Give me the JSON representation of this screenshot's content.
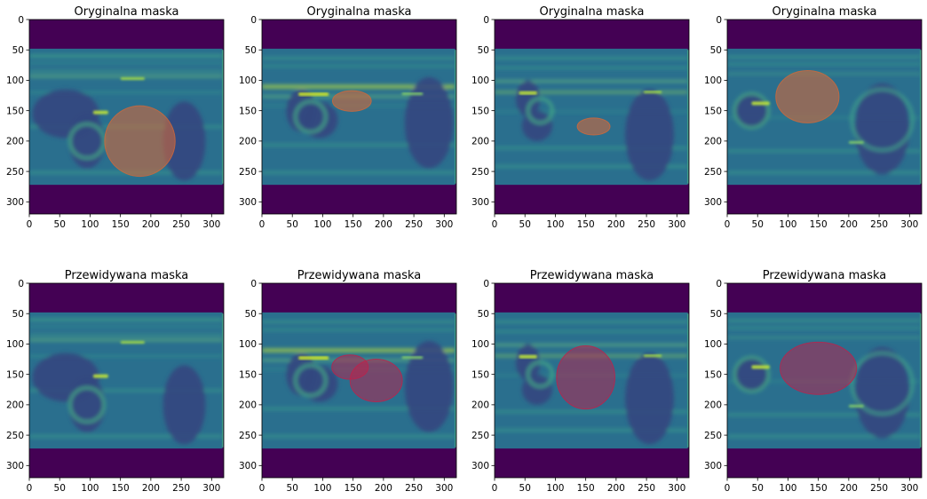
{
  "figure": {
    "background": "#ffffff",
    "layout": "2 rows x 4 columns of image panels"
  },
  "chart_data": [
    {
      "type": "image",
      "title": "Oryginalna maska",
      "row": 0,
      "col": 0,
      "scan": 0,
      "xlim": [
        0,
        320
      ],
      "ylim": [
        320,
        0
      ],
      "xticks": [
        0,
        50,
        100,
        150,
        200,
        250,
        300
      ],
      "yticks": [
        0,
        50,
        100,
        150,
        200,
        250,
        300
      ],
      "overlay_color": "#d2693a",
      "masks": [
        {
          "cx": 182,
          "cy": 200,
          "rx": 58,
          "ry": 58
        }
      ]
    },
    {
      "type": "image",
      "title": "Oryginalna maska",
      "row": 0,
      "col": 1,
      "scan": 1,
      "xlim": [
        0,
        320
      ],
      "ylim": [
        320,
        0
      ],
      "xticks": [
        0,
        50,
        100,
        150,
        200,
        250,
        300
      ],
      "yticks": [
        0,
        50,
        100,
        150,
        200,
        250,
        300
      ],
      "overlay_color": "#d2693a",
      "masks": [
        {
          "cx": 148,
          "cy": 134,
          "rx": 32,
          "ry": 17
        }
      ]
    },
    {
      "type": "image",
      "title": "Oryginalna maska",
      "row": 0,
      "col": 2,
      "scan": 2,
      "xlim": [
        0,
        320
      ],
      "ylim": [
        320,
        0
      ],
      "xticks": [
        0,
        50,
        100,
        150,
        200,
        250,
        300
      ],
      "yticks": [
        0,
        50,
        100,
        150,
        200,
        250,
        300
      ],
      "overlay_color": "#d2693a",
      "masks": [
        {
          "cx": 163,
          "cy": 176,
          "rx": 27,
          "ry": 14
        }
      ]
    },
    {
      "type": "image",
      "title": "Oryginalna maska",
      "row": 0,
      "col": 3,
      "scan": 3,
      "xlim": [
        0,
        320
      ],
      "ylim": [
        320,
        0
      ],
      "xticks": [
        0,
        50,
        100,
        150,
        200,
        250,
        300
      ],
      "yticks": [
        0,
        50,
        100,
        150,
        200,
        250,
        300
      ],
      "overlay_color": "#d2693a",
      "masks": [
        {
          "cx": 132,
          "cy": 127,
          "rx": 52,
          "ry": 43
        }
      ]
    },
    {
      "type": "image",
      "title": "Przewidywana maska",
      "row": 1,
      "col": 0,
      "scan": 0,
      "xlim": [
        0,
        320
      ],
      "ylim": [
        320,
        0
      ],
      "xticks": [
        0,
        50,
        100,
        150,
        200,
        250,
        300
      ],
      "yticks": [
        0,
        50,
        100,
        150,
        200,
        250,
        300
      ],
      "overlay_color": "#c0204a",
      "masks": []
    },
    {
      "type": "image",
      "title": "Przewidywana maska",
      "row": 1,
      "col": 1,
      "scan": 1,
      "xlim": [
        0,
        320
      ],
      "ylim": [
        320,
        0
      ],
      "xticks": [
        0,
        50,
        100,
        150,
        200,
        250,
        300
      ],
      "yticks": [
        0,
        50,
        100,
        150,
        200,
        250,
        300
      ],
      "overlay_color": "#c0204a",
      "masks": [
        {
          "cx": 145,
          "cy": 138,
          "rx": 30,
          "ry": 20
        },
        {
          "cx": 188,
          "cy": 160,
          "rx": 43,
          "ry": 35
        }
      ]
    },
    {
      "type": "image",
      "title": "Przewidywana maska",
      "row": 1,
      "col": 2,
      "scan": 2,
      "xlim": [
        0,
        320
      ],
      "ylim": [
        320,
        0
      ],
      "xticks": [
        0,
        50,
        100,
        150,
        200,
        250,
        300
      ],
      "yticks": [
        0,
        50,
        100,
        150,
        200,
        250,
        300
      ],
      "overlay_color": "#c0204a",
      "masks": [
        {
          "cx": 150,
          "cy": 155,
          "rx": 48,
          "ry": 52
        }
      ]
    },
    {
      "type": "image",
      "title": "Przewidywana maska",
      "row": 1,
      "col": 3,
      "scan": 3,
      "xlim": [
        0,
        320
      ],
      "ylim": [
        320,
        0
      ],
      "xticks": [
        0,
        50,
        100,
        150,
        200,
        250,
        300
      ],
      "yticks": [
        0,
        50,
        100,
        150,
        200,
        250,
        300
      ],
      "overlay_color": "#c0204a",
      "masks": [
        {
          "cx": 150,
          "cy": 140,
          "rx": 63,
          "ry": 43
        }
      ]
    }
  ]
}
